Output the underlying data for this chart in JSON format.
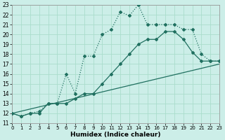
{
  "xlabel": "Humidex (Indice chaleur)",
  "bg_color": "#cceee8",
  "grid_color": "#aaddcc",
  "line_color": "#207060",
  "xlim": [
    0,
    23
  ],
  "ylim": [
    11,
    23
  ],
  "xticks": [
    0,
    1,
    2,
    3,
    4,
    5,
    6,
    7,
    8,
    9,
    10,
    11,
    12,
    13,
    14,
    15,
    16,
    17,
    18,
    19,
    20,
    21,
    22,
    23
  ],
  "yticks": [
    11,
    12,
    13,
    14,
    15,
    16,
    17,
    18,
    19,
    20,
    21,
    22,
    23
  ],
  "curve1_x": [
    0,
    1,
    2,
    3,
    4,
    5,
    6,
    7,
    8,
    9,
    10,
    11,
    12,
    13,
    14,
    15,
    16,
    17,
    18,
    19,
    20,
    21,
    22,
    23
  ],
  "curve1_y": [
    12,
    11.7,
    12,
    12.2,
    13,
    13,
    16,
    14,
    17.8,
    17.8,
    20,
    20.5,
    22.3,
    21.9,
    23.0,
    21.0,
    21.0,
    21.0,
    21.0,
    20.5,
    20.5,
    18,
    17.3,
    17.3
  ],
  "curve2_x": [
    0,
    1,
    2,
    3,
    4,
    5,
    6,
    7,
    8,
    9,
    10,
    11,
    12,
    13,
    14,
    15,
    16,
    17,
    18,
    19,
    20,
    21,
    22,
    23
  ],
  "curve2_y": [
    12,
    11.7,
    12,
    12,
    13,
    13,
    13,
    13.5,
    14,
    14.0,
    15.0,
    16.0,
    17.0,
    18.0,
    19.0,
    19.5,
    19.5,
    20.3,
    20.3,
    19.5,
    18.2,
    17.3,
    17.3,
    17.3
  ],
  "line_x": [
    0,
    23
  ],
  "line_y": [
    12,
    17.0
  ]
}
